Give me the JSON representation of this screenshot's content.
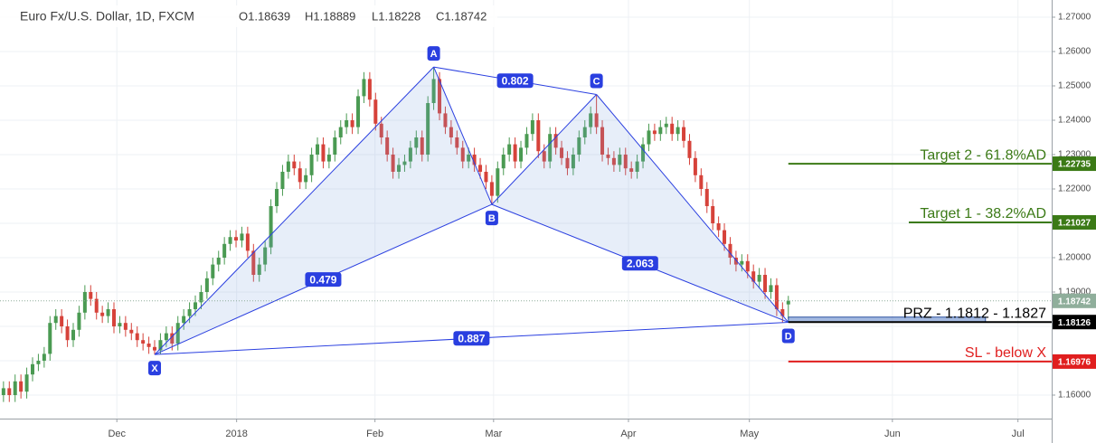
{
  "chart_data": {
    "type": "candlestick",
    "title": "Euro Fx/U.S. Dollar, 1D, FXCM",
    "ohlc_labels": [
      "O1.18639",
      "H1.18889",
      "L1.18228",
      "C1.18742"
    ],
    "up_color": "#4a9a52",
    "down_color": "#d6423a",
    "open": [
      1.16,
      1.162,
      1.16,
      1.164,
      1.161,
      1.166,
      1.169,
      1.17,
      1.172,
      1.181,
      1.183,
      1.18,
      1.176,
      1.179,
      1.184,
      1.19,
      1.188,
      1.184,
      1.183,
      1.185,
      1.18,
      1.181,
      1.179,
      1.178,
      1.176,
      1.175,
      1.174,
      1.173,
      1.176,
      1.178,
      1.175,
      1.181,
      1.183,
      1.185,
      1.187,
      1.19,
      1.194,
      1.198,
      1.2,
      1.204,
      1.206,
      1.205,
      1.207,
      1.202,
      1.195,
      1.198,
      1.203,
      1.215,
      1.22,
      1.225,
      1.228,
      1.226,
      1.222,
      1.224,
      1.23,
      1.233,
      1.228,
      1.23,
      1.235,
      1.238,
      1.24,
      1.238,
      1.247,
      1.252,
      1.246,
      1.239,
      1.235,
      1.23,
      1.225,
      1.227,
      1.228,
      1.232,
      1.235,
      1.23,
      1.245,
      1.252,
      1.242,
      1.238,
      1.235,
      1.232,
      1.228,
      1.23,
      1.227,
      1.225,
      1.222,
      1.218,
      1.226,
      1.23,
      1.233,
      1.228,
      1.232,
      1.236,
      1.24,
      1.231,
      1.228,
      1.236,
      1.232,
      1.229,
      1.226,
      1.23,
      1.235,
      1.238,
      1.242,
      1.238,
      1.23,
      1.229,
      1.227,
      1.23,
      1.226,
      1.225,
      1.228,
      1.233,
      1.237,
      1.236,
      1.238,
      1.239,
      1.236,
      1.238,
      1.234,
      1.229,
      1.224,
      1.22,
      1.215,
      1.21,
      1.208,
      1.204,
      1.2,
      1.198,
      1.199,
      1.196,
      1.193,
      1.195,
      1.19,
      1.192,
      1.185,
      1.18639
    ],
    "high": [
      1.164,
      1.164,
      1.166,
      1.166,
      1.168,
      1.171,
      1.172,
      1.174,
      1.183,
      1.185,
      1.185,
      1.182,
      1.181,
      1.186,
      1.192,
      1.192,
      1.19,
      1.186,
      1.187,
      1.187,
      1.183,
      1.183,
      1.181,
      1.18,
      1.178,
      1.177,
      1.176,
      1.178,
      1.18,
      1.18,
      1.183,
      1.185,
      1.187,
      1.189,
      1.192,
      1.196,
      1.2,
      1.202,
      1.206,
      1.208,
      1.208,
      1.209,
      1.209,
      1.204,
      1.2,
      1.205,
      1.217,
      1.222,
      1.227,
      1.23,
      1.23,
      1.228,
      1.226,
      1.232,
      1.235,
      1.235,
      1.232,
      1.237,
      1.24,
      1.242,
      1.242,
      1.249,
      1.254,
      1.254,
      1.248,
      1.241,
      1.237,
      1.232,
      1.229,
      1.23,
      1.234,
      1.237,
      1.237,
      1.247,
      1.2555,
      1.254,
      1.244,
      1.24,
      1.237,
      1.234,
      1.232,
      1.232,
      1.229,
      1.227,
      1.224,
      1.228,
      1.232,
      1.235,
      1.235,
      1.234,
      1.238,
      1.242,
      1.242,
      1.233,
      1.238,
      1.238,
      1.234,
      1.231,
      1.232,
      1.237,
      1.24,
      1.244,
      1.2475,
      1.24,
      1.232,
      1.231,
      1.232,
      1.232,
      1.228,
      1.23,
      1.235,
      1.239,
      1.239,
      1.24,
      1.241,
      1.241,
      1.24,
      1.24,
      1.236,
      1.231,
      1.226,
      1.222,
      1.217,
      1.212,
      1.21,
      1.206,
      1.202,
      1.201,
      1.201,
      1.198,
      1.197,
      1.197,
      1.194,
      1.194,
      1.187,
      1.18889
    ],
    "low": [
      1.158,
      1.158,
      1.158,
      1.159,
      1.159,
      1.164,
      1.167,
      1.168,
      1.17,
      1.179,
      1.178,
      1.174,
      1.174,
      1.177,
      1.182,
      1.186,
      1.182,
      1.181,
      1.181,
      1.178,
      1.178,
      1.177,
      1.176,
      1.174,
      1.173,
      1.172,
      1.1718,
      1.172,
      1.174,
      1.173,
      1.173,
      1.179,
      1.181,
      1.183,
      1.185,
      1.188,
      1.192,
      1.196,
      1.198,
      1.202,
      1.203,
      1.203,
      1.2,
      1.193,
      1.193,
      1.196,
      1.201,
      1.213,
      1.218,
      1.223,
      1.224,
      1.22,
      1.22,
      1.222,
      1.228,
      1.226,
      1.226,
      1.228,
      1.233,
      1.236,
      1.236,
      1.236,
      1.245,
      1.244,
      1.237,
      1.233,
      1.228,
      1.223,
      1.223,
      1.225,
      1.226,
      1.23,
      1.228,
      1.228,
      1.243,
      1.24,
      1.236,
      1.233,
      1.23,
      1.226,
      1.226,
      1.225,
      1.223,
      1.22,
      1.2155,
      1.216,
      1.224,
      1.228,
      1.226,
      1.226,
      1.23,
      1.234,
      1.229,
      1.226,
      1.226,
      1.23,
      1.227,
      1.224,
      1.224,
      1.228,
      1.233,
      1.236,
      1.236,
      1.228,
      1.227,
      1.225,
      1.225,
      1.224,
      1.223,
      1.223,
      1.226,
      1.231,
      1.234,
      1.234,
      1.236,
      1.234,
      1.234,
      1.232,
      1.227,
      1.222,
      1.218,
      1.213,
      1.208,
      1.206,
      1.202,
      1.198,
      1.196,
      1.196,
      1.194,
      1.191,
      1.191,
      1.188,
      1.188,
      1.183,
      1.1812,
      1.18228
    ],
    "close": [
      1.162,
      1.16,
      1.164,
      1.161,
      1.166,
      1.169,
      1.17,
      1.172,
      1.181,
      1.183,
      1.18,
      1.176,
      1.179,
      1.184,
      1.19,
      1.188,
      1.184,
      1.183,
      1.185,
      1.18,
      1.181,
      1.179,
      1.178,
      1.176,
      1.175,
      1.174,
      1.173,
      1.176,
      1.178,
      1.175,
      1.181,
      1.183,
      1.185,
      1.187,
      1.19,
      1.194,
      1.198,
      1.2,
      1.204,
      1.206,
      1.205,
      1.207,
      1.202,
      1.195,
      1.198,
      1.203,
      1.215,
      1.22,
      1.225,
      1.228,
      1.226,
      1.222,
      1.224,
      1.23,
      1.233,
      1.228,
      1.23,
      1.235,
      1.238,
      1.24,
      1.238,
      1.247,
      1.252,
      1.246,
      1.239,
      1.235,
      1.23,
      1.225,
      1.227,
      1.228,
      1.232,
      1.235,
      1.23,
      1.245,
      1.252,
      1.242,
      1.238,
      1.235,
      1.232,
      1.228,
      1.23,
      1.227,
      1.225,
      1.222,
      1.218,
      1.226,
      1.23,
      1.233,
      1.228,
      1.232,
      1.236,
      1.24,
      1.231,
      1.228,
      1.236,
      1.232,
      1.229,
      1.226,
      1.23,
      1.235,
      1.238,
      1.242,
      1.238,
      1.23,
      1.229,
      1.227,
      1.23,
      1.226,
      1.225,
      1.228,
      1.233,
      1.237,
      1.236,
      1.238,
      1.239,
      1.236,
      1.238,
      1.234,
      1.229,
      1.224,
      1.22,
      1.215,
      1.21,
      1.208,
      1.204,
      1.2,
      1.198,
      1.199,
      1.196,
      1.193,
      1.195,
      1.19,
      1.192,
      1.185,
      1.183,
      1.18742
    ],
    "xlim": [
      -0.6,
      180.3
    ],
    "xticks": [
      {
        "value": 19.5,
        "label": "Dec"
      },
      {
        "value": 40.1,
        "label": "2018"
      },
      {
        "value": 63.9,
        "label": "Feb"
      },
      {
        "value": 84.3,
        "label": "Mar"
      },
      {
        "value": 107.5,
        "label": "Apr"
      },
      {
        "value": 128.3,
        "label": "May"
      },
      {
        "value": 152.9,
        "label": "Jun"
      },
      {
        "value": 174.5,
        "label": "Jul"
      }
    ],
    "ylim": [
      1.15316,
      1.275
    ],
    "yticks": [
      {
        "value": 1.27,
        "label": "1.27000"
      },
      {
        "value": 1.26,
        "label": "1.26000"
      },
      {
        "value": 1.25,
        "label": "1.25000"
      },
      {
        "value": 1.24,
        "label": "1.24000"
      },
      {
        "value": 1.23,
        "label": "1.23000"
      },
      {
        "value": 1.22,
        "label": "1.22000"
      },
      {
        "value": 1.21,
        "label": "1.21000"
      },
      {
        "value": 1.2,
        "label": "1.20000"
      },
      {
        "value": 1.19,
        "label": "1.19000"
      },
      {
        "value": 1.18,
        "label": "1.18000"
      },
      {
        "value": 1.17,
        "label": "1.17000"
      },
      {
        "value": 1.16,
        "label": "1.16000"
      }
    ],
    "grid": true,
    "pattern": {
      "color": "#2a3fe0",
      "points": [
        {
          "label": "X",
          "x": 26,
          "y": 1.1718
        },
        {
          "label": "A",
          "x": 74,
          "y": 1.2555
        },
        {
          "label": "B",
          "x": 84,
          "y": 1.2155
        },
        {
          "label": "C",
          "x": 102,
          "y": 1.2475
        },
        {
          "label": "D",
          "x": 135,
          "y": 1.1812
        }
      ],
      "ratios": [
        0.802,
        0.479,
        2.063,
        0.887
      ]
    },
    "prz_zone": [
      1.1812,
      1.1827
    ],
    "levels": [
      {
        "label": "Target 2 - 61.8%AD",
        "value": 1.22735,
        "color": "#3b7a16"
      },
      {
        "label": "Target 1 - 38.2%AD",
        "value": 1.21027,
        "color": "#3b7a16"
      },
      {
        "label": "PRZ - 1.1812 - 1.1827",
        "value": 1.18126,
        "color": "#000000"
      },
      {
        "label": "SL - below X",
        "value": 1.16976,
        "color": "#e01e1e"
      }
    ],
    "last_price": {
      "value": 1.18742,
      "color": "#8fae9b"
    }
  }
}
